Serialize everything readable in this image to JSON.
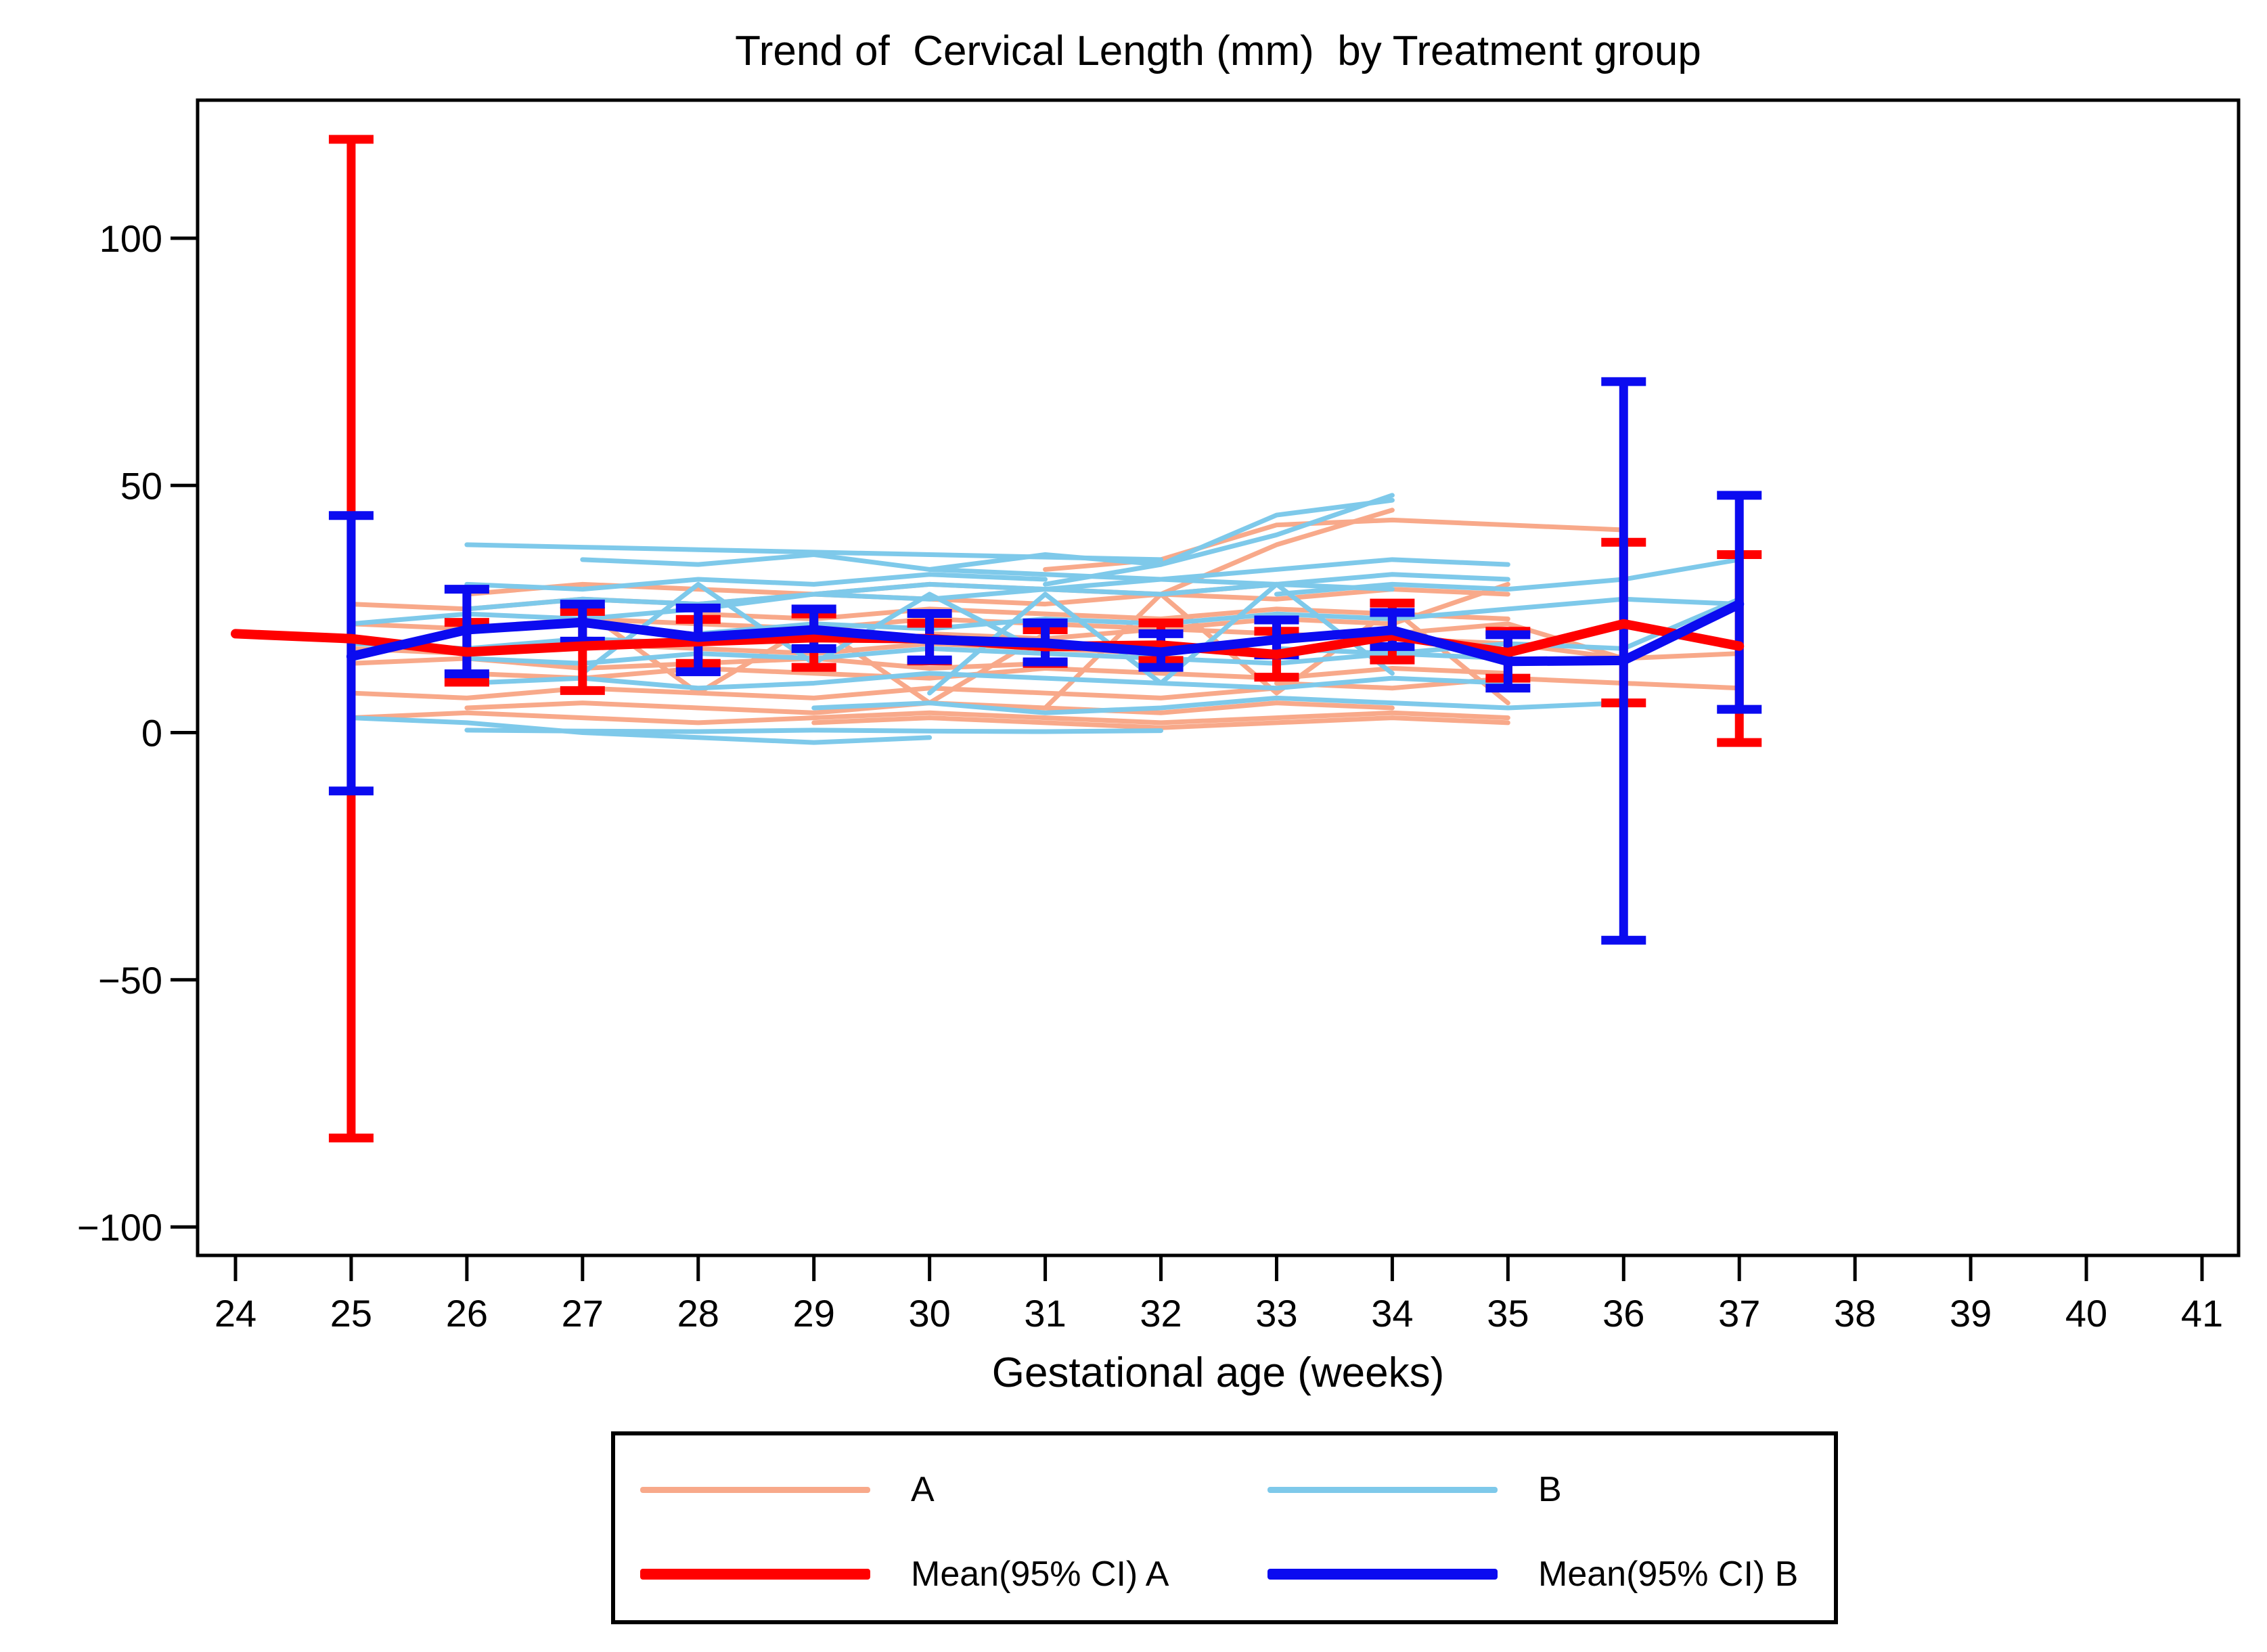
{
  "chart_data": {
    "type": "line",
    "title": "Trend of  Cervical Length (mm)  by Treatment group",
    "xlabel": "Gestational age (weeks)",
    "ylabel": "",
    "x_ticks": [
      24,
      25,
      26,
      27,
      28,
      29,
      30,
      31,
      32,
      33,
      34,
      35,
      36,
      37,
      38,
      39,
      40,
      41
    ],
    "y_ticks": [
      {
        "value": -100,
        "label": "−100"
      },
      {
        "value": -50,
        "label": "−50"
      },
      {
        "value": 0,
        "label": "0"
      },
      {
        "value": 50,
        "label": "50"
      },
      {
        "value": 100,
        "label": "100"
      }
    ],
    "xlim": [
      23.7,
      41.3
    ],
    "ylim": [
      -106,
      128
    ],
    "grid": false,
    "colors": {
      "individual_a": "#f8a98a",
      "individual_b": "#7ec9ea",
      "mean_a": "#ff0000",
      "mean_b": "#0b0bf0",
      "frame": "#000000"
    },
    "series": [
      {
        "name": "A",
        "role": "individuals",
        "color": "#f8a98a",
        "lines": [
          {
            "start_week": 25,
            "values": [
              26,
              25,
              27,
              26,
              28,
              27,
              26,
              28,
              27,
              29,
              28
            ]
          },
          {
            "start_week": 25,
            "values": [
              3,
              4,
              3,
              2,
              3,
              4,
              3,
              2,
              3,
              4,
              3
            ]
          },
          {
            "start_week": 25,
            "values": [
              22,
              21,
              23,
              22,
              21,
              23,
              22,
              21,
              23,
              22,
              30
            ]
          },
          {
            "start_week": 26,
            "values": [
              12,
              11,
              13,
              12,
              11,
              13,
              12,
              11,
              13,
              12
            ]
          },
          {
            "start_week": 25,
            "values": [
              8,
              7,
              9,
              8,
              7,
              9,
              8,
              7,
              9
            ]
          },
          {
            "start_week": 31,
            "values": [
              33,
              35,
              42,
              43,
              42,
              41
            ]
          },
          {
            "start_week": 25,
            "values": [
              17,
              16,
              18,
              17,
              16,
              18,
              17,
              16
            ]
          },
          {
            "start_week": 26,
            "values": [
              5,
              6,
              5,
              4,
              6,
              5,
              4,
              6,
              5
            ]
          },
          {
            "start_week": 32,
            "values": [
              28,
              38,
              45
            ]
          },
          {
            "start_week": 28,
            "values": [
              24,
              23,
              25,
              24,
              23,
              25,
              24,
              23
            ]
          },
          {
            "start_week": 25,
            "values": [
              14,
              15,
              13,
              14,
              15,
              13,
              14
            ]
          },
          {
            "start_week": 30,
            "values": [
              20,
              19,
              21,
              20,
              19,
              18,
              15,
              16
            ]
          },
          {
            "start_week": 33,
            "values": [
              10,
              9,
              11,
              10,
              9
            ]
          },
          {
            "start_week": 26,
            "values": [
              28,
              30,
              29,
              28,
              30,
              29,
              28,
              30
            ]
          },
          {
            "start_week": 29,
            "values": [
              2,
              3,
              2,
              1,
              2,
              3,
              2
            ]
          },
          {
            "start_week": 31,
            "values": [
              5,
              28,
              8,
              25,
              6
            ]
          },
          {
            "start_week": 27,
            "values": [
              25,
              8,
              22,
              6,
              20
            ]
          },
          {
            "start_week": 34,
            "values": [
              20,
              22,
              15
            ]
          }
        ]
      },
      {
        "name": "B",
        "role": "individuals",
        "color": "#7ec9ea",
        "lines": [
          {
            "start_week": 26,
            "values": [
              38,
              37.5,
              37,
              36.5,
              36,
              35.5,
              35
            ]
          },
          {
            "start_week": 31,
            "values": [
              30,
              34,
              40,
              48
            ]
          },
          {
            "start_week": 25,
            "values": [
              22,
              24,
              23,
              25,
              28,
              30,
              29,
              31,
              33,
              35,
              34
            ]
          },
          {
            "start_week": 26,
            "values": [
              0.5,
              0.3,
              0.2,
              0.5,
              0.3,
              0.2,
              0.4
            ]
          },
          {
            "start_week": 25,
            "values": [
              3,
              2,
              0,
              -1,
              -2,
              -1
            ]
          },
          {
            "start_week": 27,
            "values": [
              35,
              34,
              36,
              33,
              32,
              31,
              30,
              32,
              31
            ]
          },
          {
            "start_week": 26,
            "values": [
              25,
              27,
              26,
              28,
              27,
              29,
              28,
              30,
              29
            ]
          },
          {
            "start_week": 26,
            "values": [
              15,
              14,
              16,
              15,
              17,
              16,
              15,
              14,
              16,
              15
            ]
          },
          {
            "start_week": 26,
            "values": [
              10,
              11,
              9,
              10,
              12,
              11,
              10,
              9,
              11,
              10
            ]
          },
          {
            "start_week": 28,
            "values": [
              20,
              22,
              21,
              23,
              22,
              24,
              23,
              25
            ]
          },
          {
            "start_week": 25,
            "values": [
              18,
              17,
              19,
              18,
              20,
              19,
              18,
              17,
              19
            ]
          },
          {
            "start_week": 33,
            "values": [
              28,
              30,
              29,
              31,
              35
            ]
          },
          {
            "start_week": 35,
            "values": [
              25,
              27,
              26
            ]
          },
          {
            "start_week": 29,
            "values": [
              5,
              6,
              4,
              5,
              7,
              6,
              5,
              6
            ]
          },
          {
            "start_week": 30,
            "values": [
              33,
              36,
              34,
              44,
              47
            ]
          },
          {
            "start_week": 26,
            "values": [
              30,
              29,
              31,
              30,
              32,
              31
            ]
          },
          {
            "start_week": 30,
            "values": [
              8,
              28,
              10,
              30,
              12
            ]
          },
          {
            "start_week": 27,
            "values": [
              12,
              30,
              14,
              28,
              16
            ]
          },
          {
            "start_week": 33,
            "values": [
              17,
              16,
              18,
              17,
              27
            ]
          }
        ]
      },
      {
        "name": "Mean(95% CI) A",
        "role": "mean_ci",
        "color": "#ff0000",
        "weeks": [
          24,
          25,
          26,
          27,
          28,
          29,
          30,
          31,
          32,
          33,
          34,
          35,
          36,
          37
        ],
        "mean": [
          20,
          19,
          16.3,
          17.5,
          18.4,
          19.2,
          19,
          17.4,
          17.7,
          15.8,
          19.6,
          16.2,
          22,
          17.5
        ],
        "ci_low": [
          null,
          -82,
          10.2,
          8.5,
          14,
          13.2,
          14.5,
          14,
          14.6,
          11.2,
          14.7,
          11,
          6,
          -2
        ],
        "ci_high": [
          null,
          120,
          22.3,
          24.5,
          22.9,
          24,
          22.1,
          20.8,
          22.2,
          20.5,
          26.2,
          20.5,
          38.5,
          36
        ]
      },
      {
        "name": "Mean(95% CI) B",
        "role": "mean_ci",
        "color": "#0b0bf0",
        "weeks": [
          25,
          26,
          27,
          28,
          29,
          30,
          31,
          32,
          33,
          34,
          35,
          36,
          37
        ],
        "mean": [
          15.4,
          20.8,
          22.3,
          19.3,
          20.8,
          18.8,
          18.1,
          16.3,
          18.8,
          20.7,
          14.4,
          14.6,
          26
        ],
        "ci_low": [
          -11.8,
          11.9,
          18.5,
          12.3,
          17,
          14.7,
          14.3,
          13.2,
          15.7,
          17.4,
          9,
          -42,
          4.7
        ],
        "ci_high": [
          43.9,
          29,
          26,
          25.2,
          25,
          24.1,
          22.2,
          20,
          22.8,
          24.3,
          19.8,
          71,
          48
        ]
      }
    ],
    "legend": {
      "position": "bottom",
      "items": [
        {
          "label": "A",
          "swatch": "thin",
          "color": "#f8a98a"
        },
        {
          "label": "B",
          "swatch": "thin",
          "color": "#7ec9ea"
        },
        {
          "label": "Mean(95% CI) A",
          "swatch": "thick",
          "color": "#ff0000"
        },
        {
          "label": "Mean(95% CI) B",
          "swatch": "thick",
          "color": "#0b0bf0"
        }
      ]
    }
  }
}
